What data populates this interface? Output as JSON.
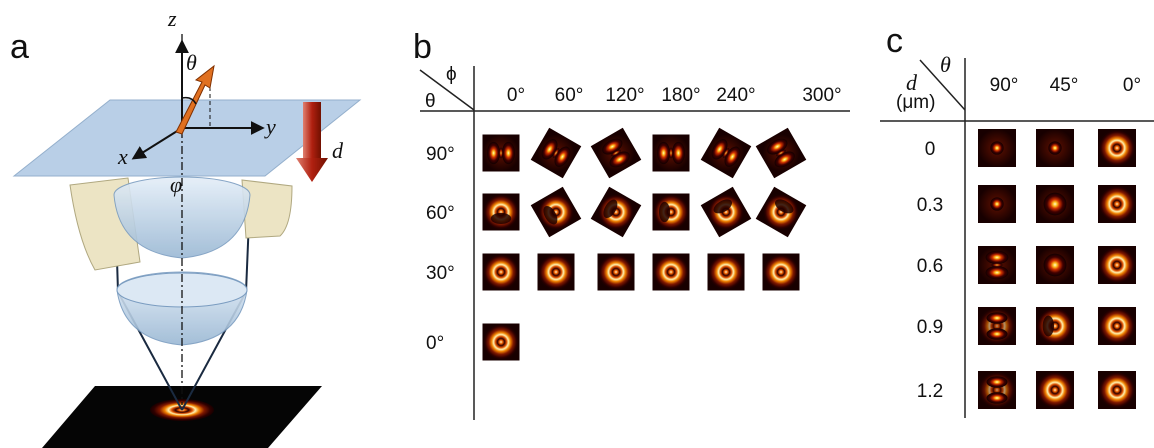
{
  "panels": {
    "a": {
      "label": "a",
      "axes": {
        "z": "z",
        "theta": "θ",
        "y": "y",
        "x": "x",
        "phi": "φ",
        "d": "d"
      }
    },
    "b": {
      "label": "b",
      "corner": {
        "col": "ϕ",
        "row": "θ"
      },
      "columns": [
        "0°",
        "60°",
        "120°",
        "180°",
        "240°",
        "300°"
      ],
      "rows": [
        "90°",
        "60°",
        "30°",
        "0°"
      ]
    },
    "c": {
      "label": "c",
      "corner": {
        "col": "θ",
        "row": "d",
        "unit": "(μm)"
      },
      "columns": [
        "90°",
        "45°",
        "0°"
      ],
      "rows": [
        "0",
        "0.3",
        "0.6",
        "0.9",
        "1.2"
      ]
    }
  }
}
